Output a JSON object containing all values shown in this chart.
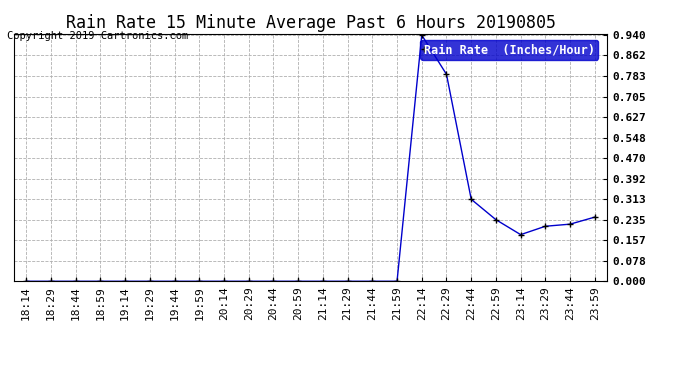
{
  "title": "Rain Rate 15 Minute Average Past 6 Hours 20190805",
  "copyright": "Copyright 2019 Cartronics.com",
  "legend_label": "Rain Rate  (Inches/Hour)",
  "line_color": "#0000cc",
  "marker_color": "#000000",
  "background_color": "#ffffff",
  "grid_color": "#b0b0b0",
  "ylim": [
    0.0,
    0.94
  ],
  "yticks": [
    0.0,
    0.078,
    0.157,
    0.235,
    0.313,
    0.392,
    0.47,
    0.548,
    0.627,
    0.705,
    0.783,
    0.862,
    0.94
  ],
  "x_labels": [
    "18:14",
    "18:29",
    "18:44",
    "18:59",
    "19:14",
    "19:29",
    "19:44",
    "19:59",
    "20:14",
    "20:29",
    "20:44",
    "20:59",
    "21:14",
    "21:29",
    "21:44",
    "21:59",
    "22:14",
    "22:29",
    "22:44",
    "22:59",
    "23:14",
    "23:29",
    "23:44",
    "23:59"
  ],
  "y_values": [
    0.0,
    0.0,
    0.0,
    0.0,
    0.0,
    0.0,
    0.0,
    0.0,
    0.0,
    0.0,
    0.0,
    0.0,
    0.0,
    0.0,
    0.0,
    0.0,
    0.94,
    0.79,
    0.313,
    0.235,
    0.178,
    0.21,
    0.218,
    0.245
  ],
  "title_fontsize": 12,
  "copyright_fontsize": 7.5,
  "tick_fontsize": 8,
  "legend_fontsize": 8.5,
  "legend_bg": "#0000cc",
  "legend_text_color": "#ffffff"
}
